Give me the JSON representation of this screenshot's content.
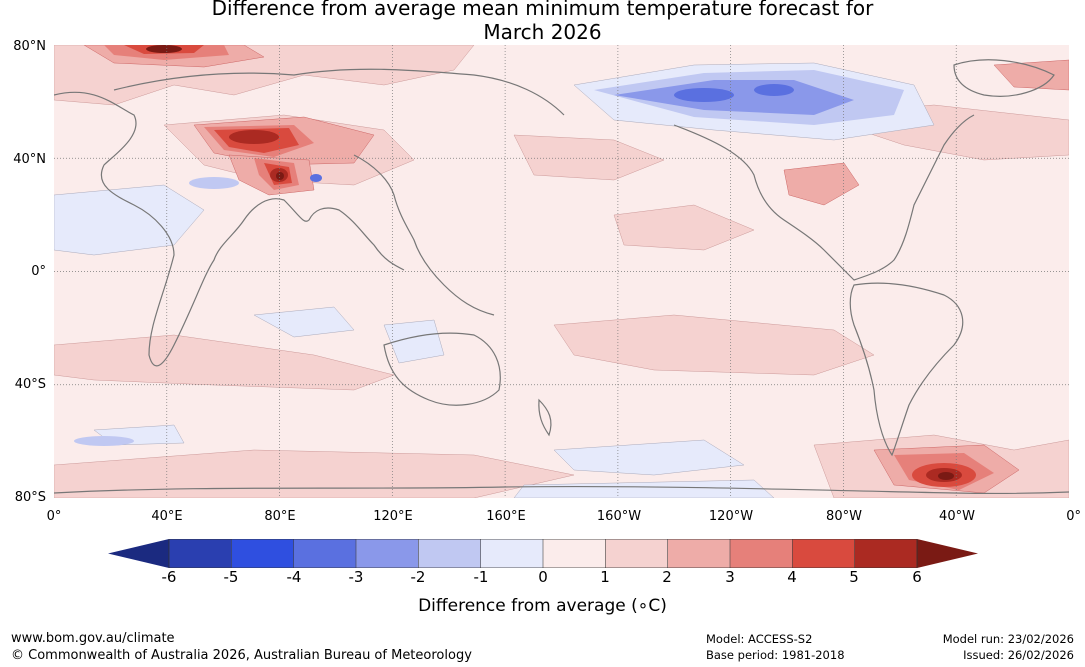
{
  "title_line1": "Difference from average mean minimum temperature forecast for",
  "title_line2": "March 2026",
  "lat_labels": [
    "80°N",
    "40°N",
    "0°",
    "40°S",
    "80°S"
  ],
  "lon_labels": [
    "0°",
    "40°E",
    "80°E",
    "120°E",
    "160°E",
    "160°W",
    "120°W",
    "80°W",
    "40°W",
    "0°"
  ],
  "colorbar": {
    "ticks": [
      "-6",
      "-5",
      "-4",
      "-3",
      "-2",
      "-1",
      "0",
      "1",
      "2",
      "3",
      "4",
      "5",
      "6"
    ],
    "colors": [
      "#1b2a80",
      "#2a3fb0",
      "#2f4fe0",
      "#5a70e0",
      "#8a98ea",
      "#c0c8f2",
      "#e6eafb",
      "#fbeceb",
      "#f5d2d0",
      "#eeaca8",
      "#e6807a",
      "#d94a3e",
      "#ab2a22",
      "#7a1a14"
    ],
    "label": "Difference from average (∘C)"
  },
  "footer": {
    "website": "www.bom.gov.au/climate",
    "copyright": "© Commonwealth of Australia 2026, Australian Bureau of Meteorology",
    "model": "Model: ACCESS-S2",
    "base_period": "Base period: 1981-2018",
    "model_run": "Model run: 23/02/2026",
    "issued": "Issued: 26/02/2026"
  }
}
